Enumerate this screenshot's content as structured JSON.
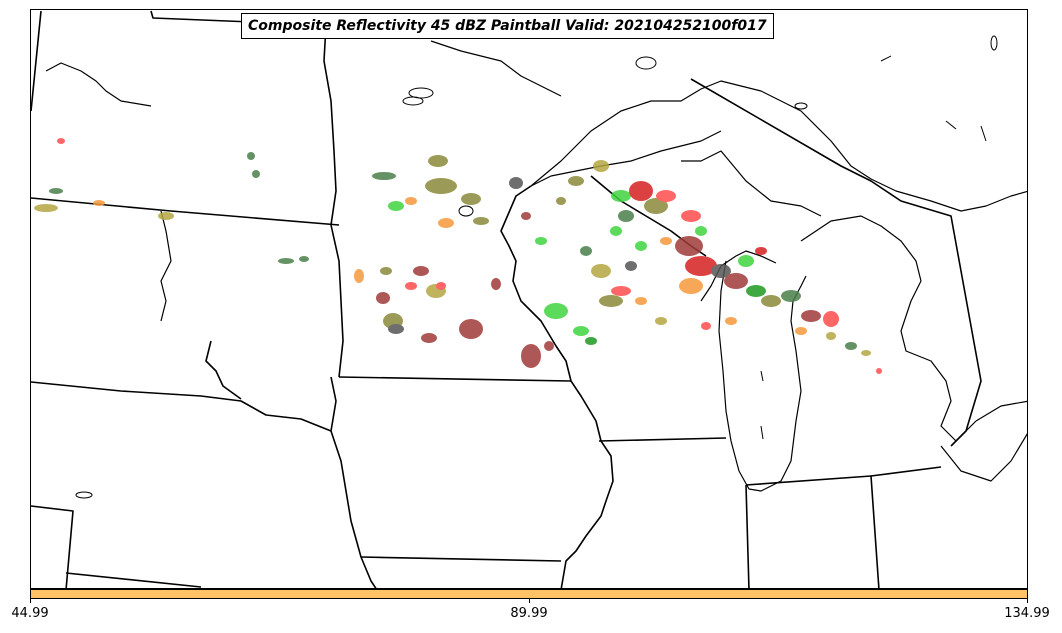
{
  "title": "Composite Reflectivity 45 dBZ Paintball Valid: 202104252100f017",
  "colorbar": {
    "color": "#ffc266",
    "ticks": [
      "44.99",
      "89.99",
      "134.99"
    ]
  },
  "map": {
    "region": "Upper Midwest / Great Lakes",
    "paintball_colors": [
      "#ff4d4d",
      "#d62020",
      "#f59a3c",
      "#b5a642",
      "#8a8a3a",
      "#4a7f4a",
      "#3fd43f",
      "#1f9a1f",
      "#a03a3a",
      "#555555"
    ]
  }
}
